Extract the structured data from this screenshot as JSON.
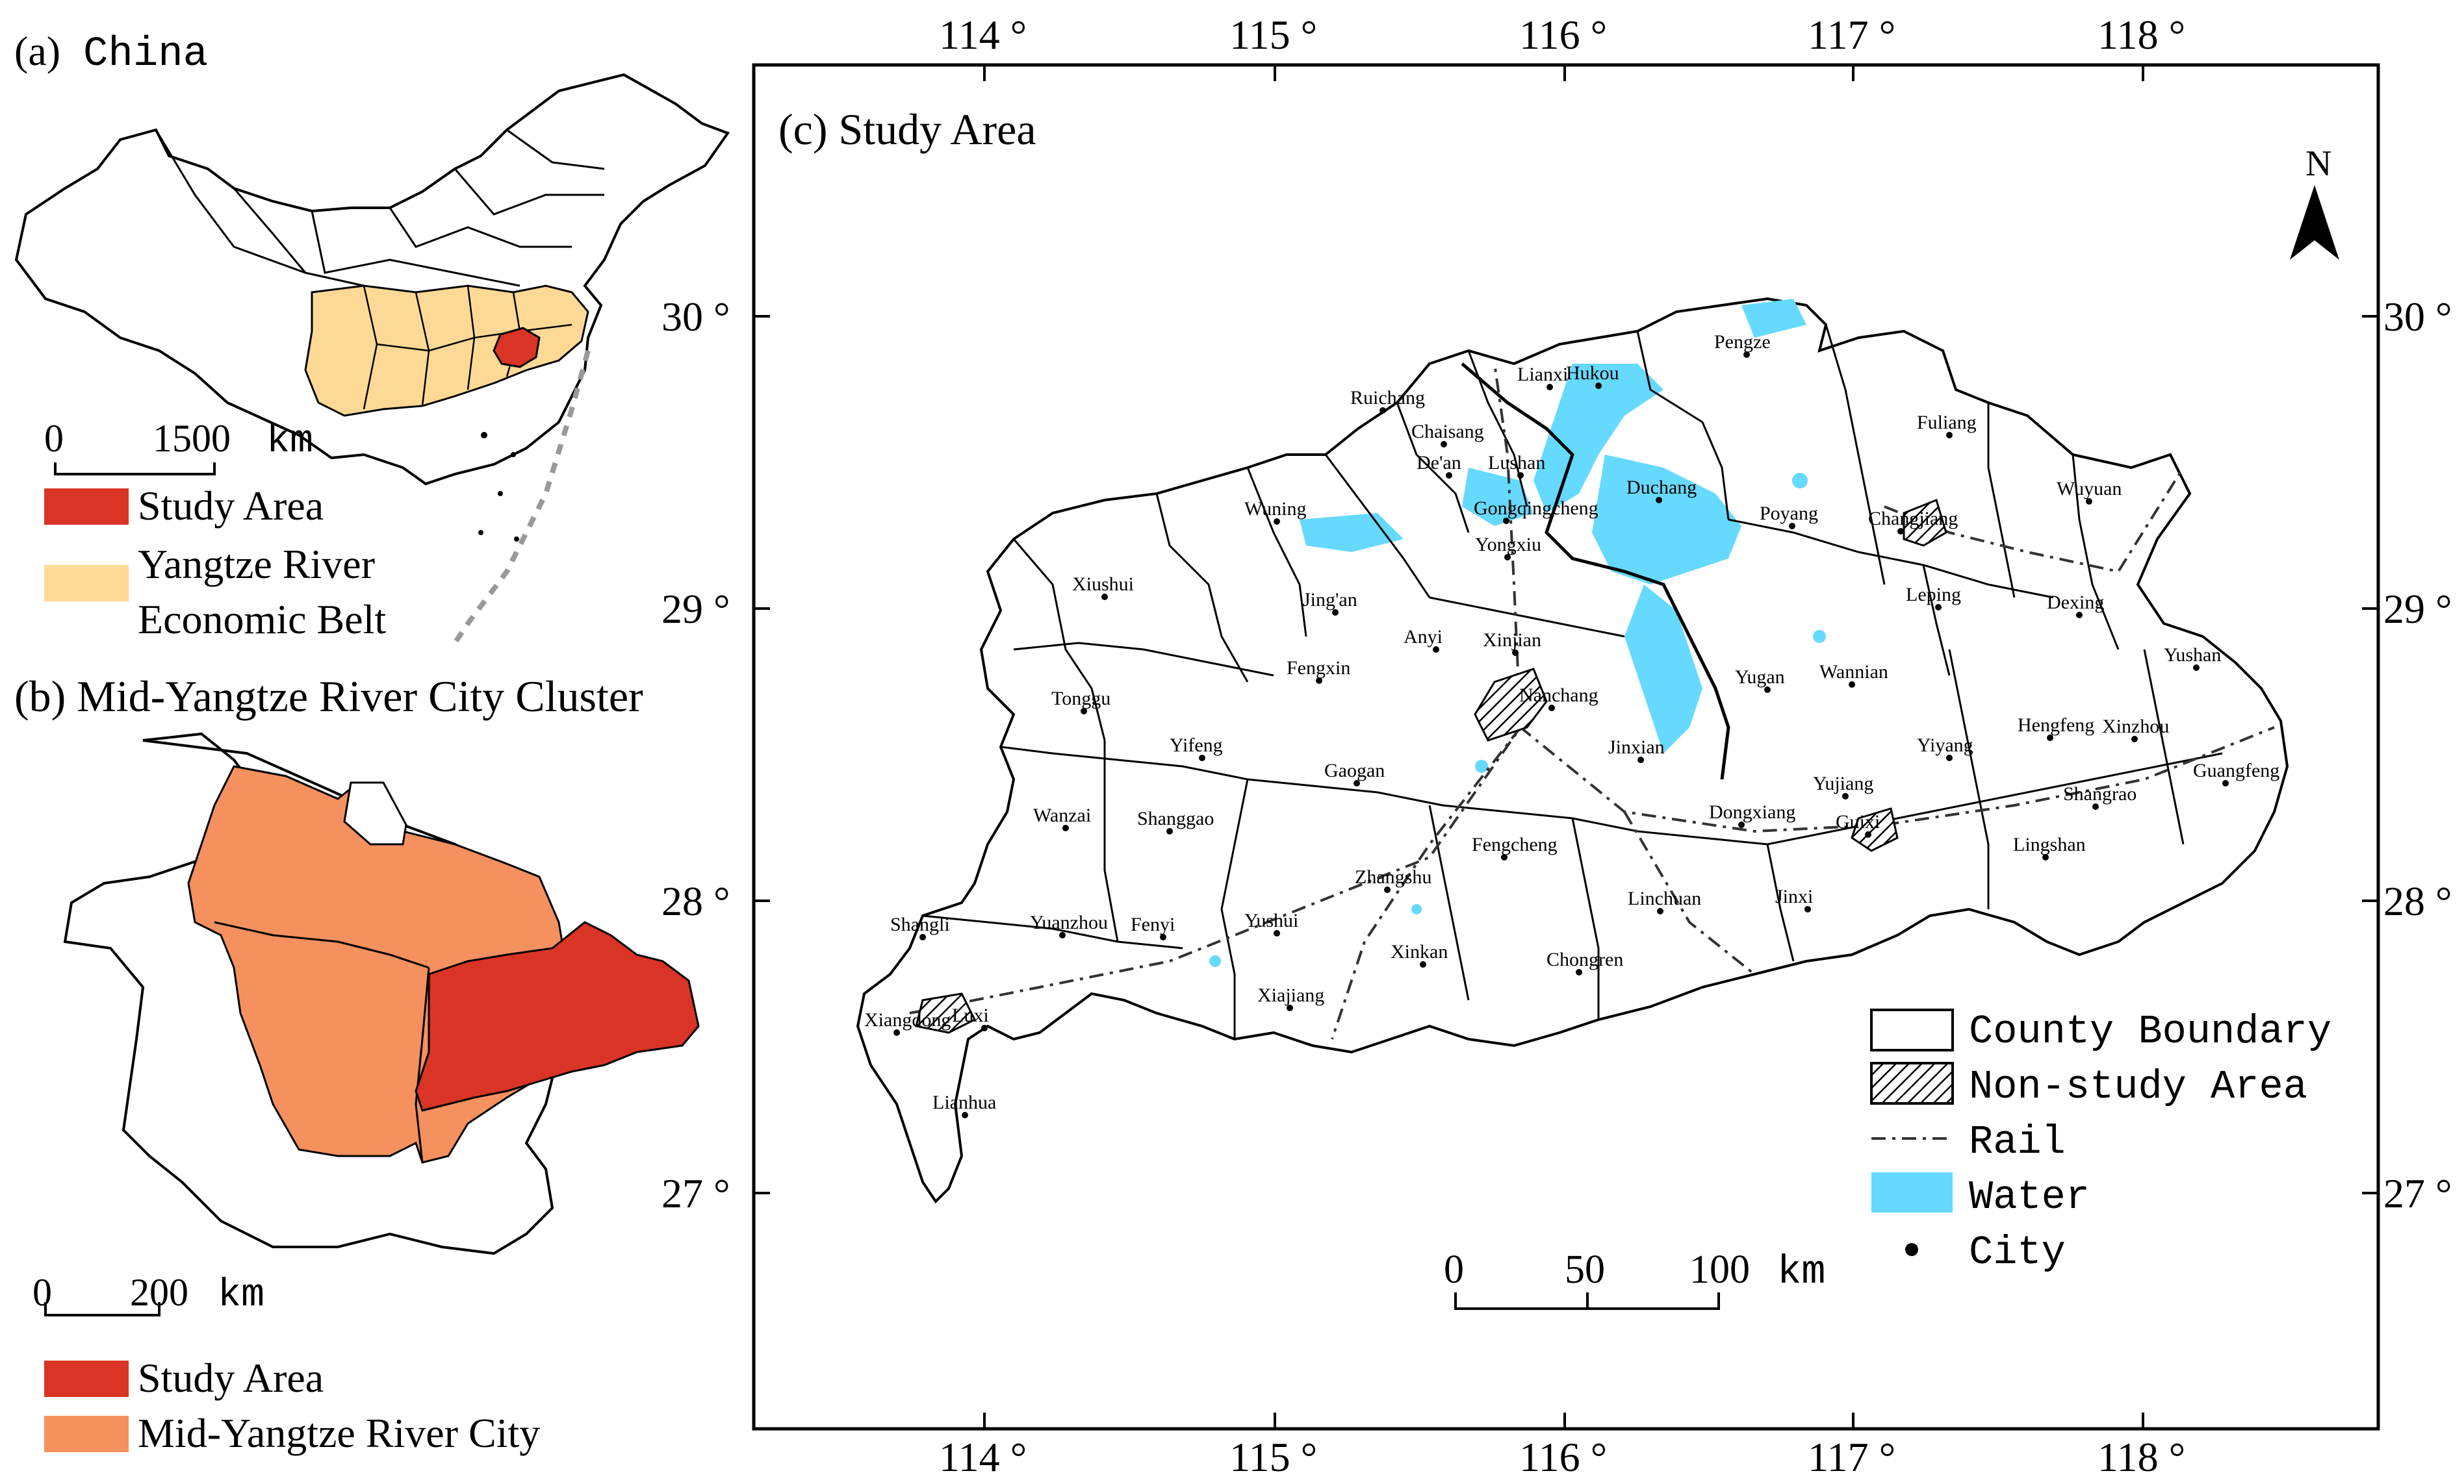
{
  "colors": {
    "study_area": "#d93425",
    "yangtze_belt": "#fdd995",
    "mid_yangtze_city": "#f4915f",
    "water": "#66d9ff",
    "border": "#000000"
  },
  "panel_a": {
    "label": "(a)",
    "title": "China",
    "scale_labels": [
      "0",
      "1500",
      "km"
    ],
    "legend": [
      {
        "label": "Study Area",
        "color_key": "study_area"
      },
      {
        "label": "Yangtze River",
        "color_key": "yangtze_belt"
      },
      {
        "label": "Economic Belt"
      }
    ]
  },
  "panel_b": {
    "title": "(b) Mid-Yangtze River City Cluster",
    "scale_labels": [
      "0",
      "200",
      "km"
    ],
    "legend": [
      {
        "label": "Study Area",
        "color_key": "study_area"
      },
      {
        "label": "Mid-Yangtze River City",
        "color_key": "mid_yangtze_city"
      }
    ]
  },
  "panel_c": {
    "title": "(c) Study Area",
    "north_label": "N",
    "lon_ticks": [
      "114 °",
      "115 °",
      "116 °",
      "117 °",
      "118 °"
    ],
    "lat_ticks": [
      "30 °",
      "29 °",
      "28 °",
      "27 °"
    ],
    "scale_labels": [
      "0",
      "50",
      "100",
      "km"
    ],
    "legend": [
      {
        "label": "County Boundary",
        "icon": "county-boundary"
      },
      {
        "label": "Non-study Area",
        "icon": "hatch"
      },
      {
        "label": "Rail",
        "icon": "rail-line"
      },
      {
        "label": "Water",
        "icon": "water",
        "color_key": "water"
      },
      {
        "label": "City",
        "icon": "dot"
      }
    ],
    "cities": [
      {
        "name": "Pengze"
      },
      {
        "name": "Ruichang"
      },
      {
        "name": "Lianxi"
      },
      {
        "name": "Hukou"
      },
      {
        "name": "Chaisang"
      },
      {
        "name": "Fuliang"
      },
      {
        "name": "De'an"
      },
      {
        "name": "Lushan"
      },
      {
        "name": "Duchang"
      },
      {
        "name": "Wuning"
      },
      {
        "name": "Gongqingcheng"
      },
      {
        "name": "Poyang"
      },
      {
        "name": "Changjiang"
      },
      {
        "name": "Wuyuan"
      },
      {
        "name": "Yongxiu"
      },
      {
        "name": "Xiushui"
      },
      {
        "name": "Leping"
      },
      {
        "name": "Jing'an"
      },
      {
        "name": "Dexing"
      },
      {
        "name": "Anyi"
      },
      {
        "name": "Xinjian"
      },
      {
        "name": "Fengxin"
      },
      {
        "name": "Yugan"
      },
      {
        "name": "Wannian"
      },
      {
        "name": "Yushan"
      },
      {
        "name": "Tonggu"
      },
      {
        "name": "Nanchang"
      },
      {
        "name": "Hengfeng"
      },
      {
        "name": "Xinzhou"
      },
      {
        "name": "Yifeng"
      },
      {
        "name": "Jinxian"
      },
      {
        "name": "Yiyang"
      },
      {
        "name": "Guangfeng"
      },
      {
        "name": "Gaogan"
      },
      {
        "name": "Yujiang"
      },
      {
        "name": "Shangrao"
      },
      {
        "name": "Wanzai"
      },
      {
        "name": "Shanggao"
      },
      {
        "name": "Dongxiang"
      },
      {
        "name": "Guixi"
      },
      {
        "name": "Fengcheng"
      },
      {
        "name": "Lingshan"
      },
      {
        "name": "Zhangshu"
      },
      {
        "name": "Linchuan"
      },
      {
        "name": "Jinxi"
      },
      {
        "name": "Shangli"
      },
      {
        "name": "Yuanzhou"
      },
      {
        "name": "Fenyi"
      },
      {
        "name": "Yushui"
      },
      {
        "name": "Xinkan"
      },
      {
        "name": "Chongren"
      },
      {
        "name": "Xiajiang"
      },
      {
        "name": "Luxi"
      },
      {
        "name": "Xiangdong"
      },
      {
        "name": "Lianhua"
      }
    ]
  }
}
